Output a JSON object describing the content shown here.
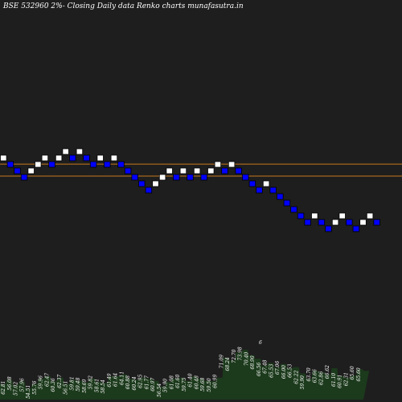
{
  "chart_data": {
    "type": "renko",
    "title": "BSE 532960  2%-  Closing Daily data  Renko  charts munafasutra.in",
    "colors": {
      "background": "#1e1e1e",
      "up_brick": "#ffffff",
      "down_brick": "#0000ff",
      "level_line": "#c8781e",
      "volume": "#1c3a1c",
      "label": "#ffffff"
    },
    "levels": [
      69.3,
      68.0
    ],
    "bricks": [
      {
        "dir": "up",
        "value": 70.1
      },
      {
        "dir": "down",
        "value": 69.4
      },
      {
        "dir": "down",
        "value": 68.7
      },
      {
        "dir": "down",
        "value": 68.0
      },
      {
        "dir": "up",
        "value": 68.7
      },
      {
        "dir": "up",
        "value": 69.4
      },
      {
        "dir": "up",
        "value": 70.1
      },
      {
        "dir": "down",
        "value": 69.4
      },
      {
        "dir": "up",
        "value": 70.1
      },
      {
        "dir": "up",
        "value": 70.8
      },
      {
        "dir": "down",
        "value": 70.1
      },
      {
        "dir": "up",
        "value": 70.8
      },
      {
        "dir": "down",
        "value": 70.1
      },
      {
        "dir": "down",
        "value": 69.4
      },
      {
        "dir": "up",
        "value": 70.1
      },
      {
        "dir": "down",
        "value": 69.4
      },
      {
        "dir": "up",
        "value": 70.1
      },
      {
        "dir": "down",
        "value": 69.4
      },
      {
        "dir": "down",
        "value": 68.7
      },
      {
        "dir": "down",
        "value": 68.0
      },
      {
        "dir": "down",
        "value": 67.3
      },
      {
        "dir": "down",
        "value": 66.6
      },
      {
        "dir": "up",
        "value": 67.3
      },
      {
        "dir": "up",
        "value": 68.0
      },
      {
        "dir": "up",
        "value": 68.7
      },
      {
        "dir": "down",
        "value": 68.0
      },
      {
        "dir": "up",
        "value": 68.7
      },
      {
        "dir": "down",
        "value": 68.0
      },
      {
        "dir": "up",
        "value": 68.7
      },
      {
        "dir": "down",
        "value": 68.0
      },
      {
        "dir": "up",
        "value": 68.7
      },
      {
        "dir": "up",
        "value": 69.4
      },
      {
        "dir": "down",
        "value": 68.7
      },
      {
        "dir": "up",
        "value": 69.4
      },
      {
        "dir": "down",
        "value": 68.7
      },
      {
        "dir": "down",
        "value": 68.0
      },
      {
        "dir": "down",
        "value": 67.3
      },
      {
        "dir": "down",
        "value": 66.6
      },
      {
        "dir": "up",
        "value": 67.3
      },
      {
        "dir": "down",
        "value": 66.6
      },
      {
        "dir": "down",
        "value": 65.9
      },
      {
        "dir": "down",
        "value": 65.2
      },
      {
        "dir": "down",
        "value": 64.5
      },
      {
        "dir": "down",
        "value": 63.8
      },
      {
        "dir": "down",
        "value": 63.1
      },
      {
        "dir": "up",
        "value": 63.8
      },
      {
        "dir": "down",
        "value": 63.1
      },
      {
        "dir": "down",
        "value": 62.4
      },
      {
        "dir": "up",
        "value": 63.1
      },
      {
        "dir": "up",
        "value": 63.8
      },
      {
        "dir": "down",
        "value": 63.1
      },
      {
        "dir": "down",
        "value": 62.4
      },
      {
        "dir": "up",
        "value": 63.1
      },
      {
        "dir": "up",
        "value": 63.8
      },
      {
        "dir": "down",
        "value": 63.1
      }
    ],
    "volume_labels": [
      "62.81",
      "56.08",
      "57.02",
      "57.96",
      "54.51",
      "55.76",
      "59.96",
      "62.47",
      "60.36",
      "62.37",
      "56.51",
      "59.81",
      "59.48",
      "58.69",
      "59.82",
      "58.61",
      "58.54",
      "61.49",
      "61.64",
      "64.11",
      "60.88",
      "60.24",
      "62.95",
      "61.77",
      "60.97",
      "56.54",
      "59.90",
      "61.08",
      "61.60",
      "59.75",
      "61.40",
      "60.48",
      "59.68",
      "59.50",
      "60.99",
      "71.09",
      "68.24",
      "72.70",
      "73.98",
      "70.40",
      "68.90",
      "66.56",
      "67.48",
      "65.53",
      "67.06",
      "66.00",
      "66.53",
      "62.22",
      "59.90",
      "63.70",
      "63.66",
      "62.86",
      "66.62",
      "61.10",
      "60.91",
      "62.31",
      "65.60",
      "65.60"
    ],
    "volume_heights": [
      0.3,
      0.38,
      0.28,
      0.35,
      0.22,
      0.3,
      0.4,
      0.45,
      0.35,
      0.42,
      0.3,
      0.38,
      0.36,
      0.33,
      0.4,
      0.34,
      0.32,
      0.44,
      0.45,
      0.48,
      0.4,
      0.38,
      0.42,
      0.4,
      0.36,
      0.25,
      0.34,
      0.4,
      0.42,
      0.36,
      0.44,
      0.4,
      0.36,
      0.35,
      0.42,
      0.8,
      0.75,
      0.9,
      0.95,
      0.85,
      0.78,
      0.65,
      0.7,
      0.62,
      0.68,
      0.6,
      0.62,
      0.5,
      0.4,
      0.55,
      0.52,
      0.48,
      0.6,
      0.45,
      0.42,
      0.46,
      0.58,
      0.55
    ],
    "volume_marker": "6"
  }
}
